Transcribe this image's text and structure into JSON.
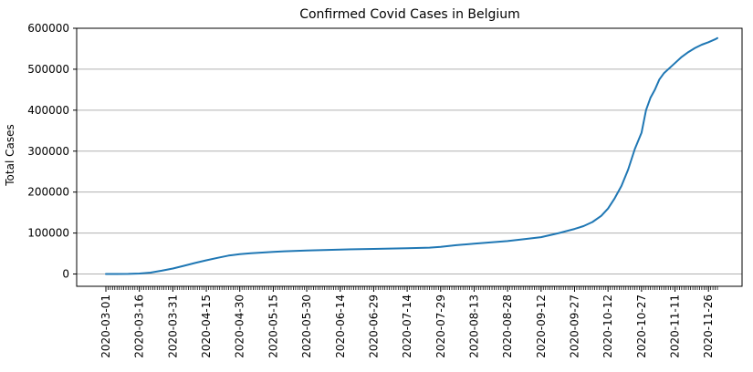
{
  "chart_data": {
    "type": "line",
    "title": "Confirmed Covid Cases in Belgium",
    "xlabel": "",
    "ylabel": "Total Cases",
    "x_axis_kind": "date",
    "x_range": [
      "2020-03-01",
      "2020-12-01"
    ],
    "ylim": [
      -30000,
      600000
    ],
    "yticks": [
      0,
      100000,
      200000,
      300000,
      400000,
      500000,
      600000
    ],
    "ytick_labels": [
      "0",
      "100000",
      "200000",
      "300000",
      "400000",
      "500000",
      "600000"
    ],
    "xticks": [
      "2020-03-01",
      "2020-03-16",
      "2020-03-31",
      "2020-04-15",
      "2020-04-30",
      "2020-05-15",
      "2020-05-30",
      "2020-06-14",
      "2020-06-29",
      "2020-07-14",
      "2020-07-29",
      "2020-08-13",
      "2020-08-28",
      "2020-09-12",
      "2020-09-27",
      "2020-10-12",
      "2020-10-27",
      "2020-11-11",
      "2020-11-26"
    ],
    "grid": "y",
    "legend": "none",
    "series": [
      {
        "color": "#1f77b4",
        "x": [
          "2020-03-01",
          "2020-03-11",
          "2020-03-16",
          "2020-03-21",
          "2020-03-26",
          "2020-03-31",
          "2020-04-05",
          "2020-04-10",
          "2020-04-15",
          "2020-04-20",
          "2020-04-25",
          "2020-04-30",
          "2020-05-05",
          "2020-05-10",
          "2020-05-15",
          "2020-05-20",
          "2020-05-30",
          "2020-06-14",
          "2020-06-29",
          "2020-07-14",
          "2020-07-24",
          "2020-07-29",
          "2020-08-05",
          "2020-08-13",
          "2020-08-28",
          "2020-09-05",
          "2020-09-12",
          "2020-09-20",
          "2020-09-27",
          "2020-10-01",
          "2020-10-05",
          "2020-10-09",
          "2020-10-12",
          "2020-10-15",
          "2020-10-18",
          "2020-10-21",
          "2020-10-24",
          "2020-10-27",
          "2020-10-29",
          "2020-10-31",
          "2020-11-02",
          "2020-11-04",
          "2020-11-06",
          "2020-11-09",
          "2020-11-11",
          "2020-11-14",
          "2020-11-17",
          "2020-11-20",
          "2020-11-23",
          "2020-11-26",
          "2020-11-29",
          "2020-11-30"
        ],
        "y": [
          0,
          300,
          1200,
          3500,
          8000,
          13500,
          20000,
          27000,
          33500,
          39500,
          45000,
          48500,
          50500,
          52300,
          54000,
          55500,
          57500,
          59800,
          61300,
          62800,
          64500,
          66500,
          70500,
          74000,
          80500,
          85500,
          90000,
          100000,
          110000,
          117000,
          127000,
          142000,
          160000,
          185000,
          215000,
          255000,
          305000,
          345000,
          400000,
          430000,
          450000,
          475000,
          490000,
          505000,
          515000,
          530000,
          542000,
          552000,
          560000,
          566000,
          573000,
          576000
        ]
      }
    ]
  }
}
